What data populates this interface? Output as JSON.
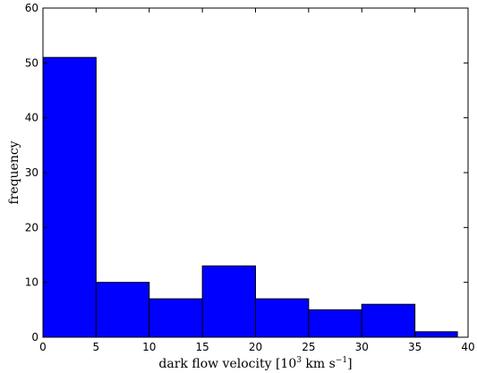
{
  "chart_data": {
    "type": "bar",
    "subtype": "histogram",
    "bins": [
      {
        "x0": 0,
        "x1": 5,
        "value": 51
      },
      {
        "x0": 5,
        "x1": 10,
        "value": 10
      },
      {
        "x0": 10,
        "x1": 15,
        "value": 7
      },
      {
        "x0": 15,
        "x1": 20,
        "value": 13
      },
      {
        "x0": 20,
        "x1": 25,
        "value": 7
      },
      {
        "x0": 25,
        "x1": 30,
        "value": 5
      },
      {
        "x0": 30,
        "x1": 35,
        "value": 6
      },
      {
        "x0": 35,
        "x1": 39,
        "value": 1
      }
    ],
    "title": "",
    "xlabel": "dark flow velocity [10³ km s⁻¹]",
    "xlabel_parts": {
      "prefix": "dark flow velocity [10",
      "exp1": "3",
      "mid": " km s",
      "exp2": "−1",
      "suffix": "]"
    },
    "ylabel": "frequency",
    "xlim": [
      0,
      40
    ],
    "ylim": [
      0,
      60
    ],
    "xticks": [
      0,
      5,
      10,
      15,
      20,
      25,
      30,
      35,
      40
    ],
    "yticks": [
      0,
      10,
      20,
      30,
      40,
      50,
      60
    ],
    "grid": false,
    "bar_color": "#0000ff",
    "edge_color": "#000000"
  }
}
